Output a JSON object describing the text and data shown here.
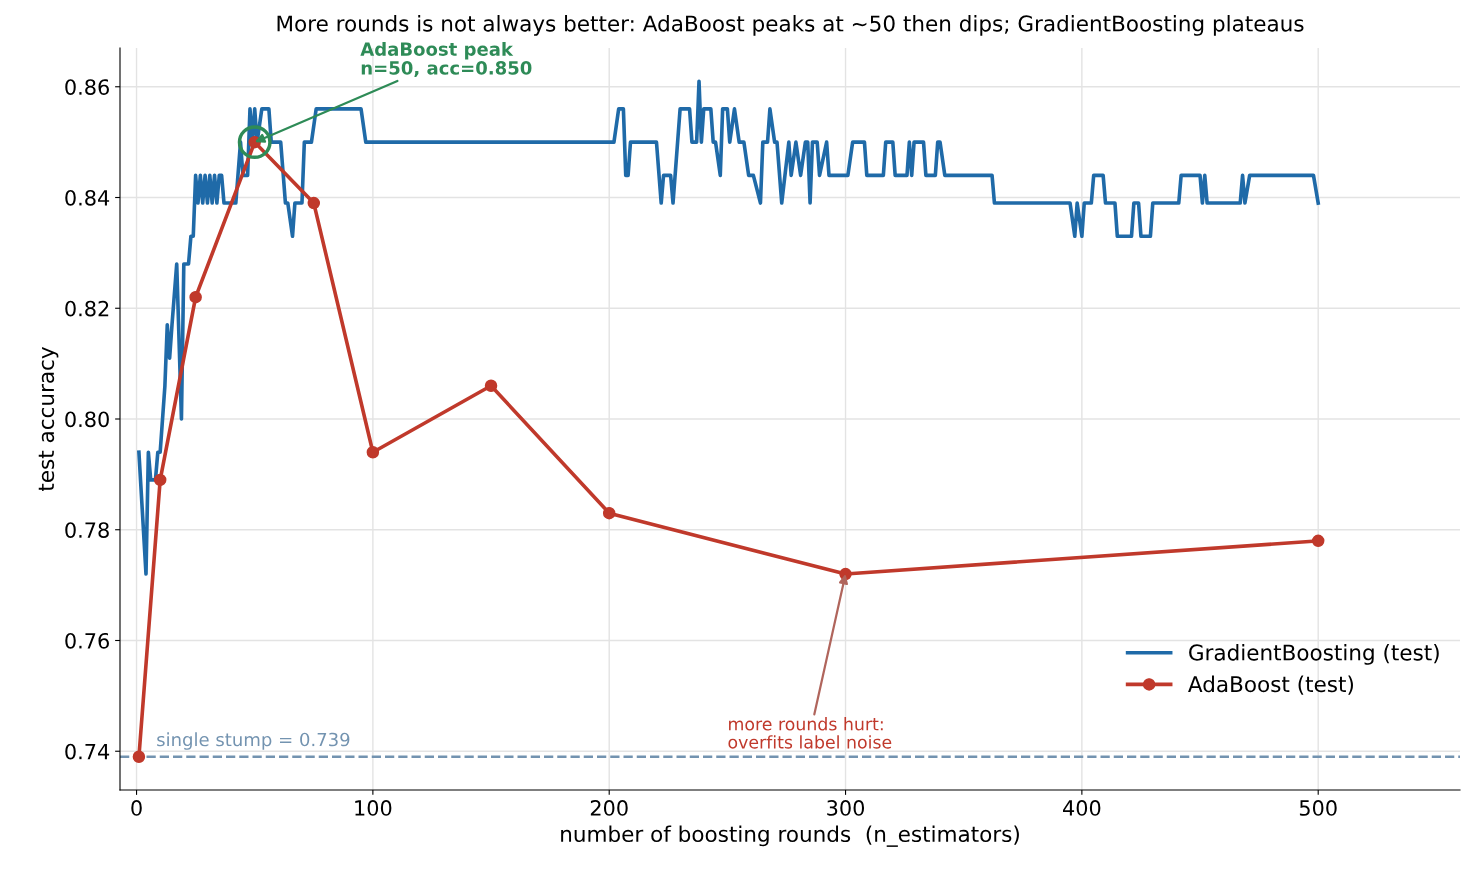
{
  "chart_data": {
    "type": "line",
    "title": "More rounds is not always better: AdaBoost peaks at ~50 then dips; GradientBoosting plateaus",
    "xlabel": "number of boosting rounds  (n_estimators)",
    "ylabel": "test accuracy",
    "xlim": [
      -7,
      560
    ],
    "ylim": [
      0.733,
      0.867
    ],
    "xticks": [
      0,
      100,
      200,
      300,
      400,
      500
    ],
    "yticks": [
      {
        "value": 0.74,
        "label": "0.74"
      },
      {
        "value": 0.76,
        "label": "0.76"
      },
      {
        "value": 0.78,
        "label": "0.78"
      },
      {
        "value": 0.8,
        "label": "0.80"
      },
      {
        "value": 0.82,
        "label": "0.82"
      },
      {
        "value": 0.84,
        "label": "0.84"
      },
      {
        "value": 0.86,
        "label": "0.86"
      }
    ],
    "grid": true,
    "legend": "bottom right",
    "series": [
      {
        "name": "GradientBoosting (test)",
        "color": "#1f6aa8",
        "marker": "none",
        "x": [
          1,
          4,
          5,
          6,
          8,
          9,
          10,
          12,
          13,
          14,
          15,
          17,
          19,
          20,
          22,
          23,
          24,
          25,
          26,
          27,
          28,
          29,
          30,
          31,
          32,
          33,
          34,
          35,
          36,
          37,
          42,
          44,
          45,
          47,
          48,
          49,
          50,
          51,
          53,
          56,
          57,
          61,
          63,
          64,
          66,
          67,
          70,
          71,
          74,
          76,
          95,
          97,
          202,
          204,
          206,
          207,
          208,
          209,
          220,
          222,
          223,
          226,
          227,
          230,
          234,
          235,
          237,
          238,
          239,
          240,
          243,
          244,
          245,
          247,
          248,
          250,
          251,
          253,
          255,
          257,
          259,
          261,
          264,
          265,
          267,
          268,
          270,
          271,
          273,
          276,
          277,
          279,
          281,
          283,
          284,
          285,
          286,
          288,
          289,
          292,
          293,
          301,
          303,
          308,
          309,
          316,
          317,
          320,
          321,
          326,
          327,
          328,
          329,
          333,
          334,
          338,
          339,
          340,
          342,
          362,
          363,
          395,
          397,
          398,
          400,
          401,
          404,
          405,
          409,
          410,
          414,
          415,
          421,
          422,
          424,
          425,
          429,
          430,
          441,
          442,
          450,
          451,
          452,
          453,
          467,
          468,
          469,
          471,
          498,
          500
        ],
        "values": [
          0.794,
          0.772,
          0.794,
          0.789,
          0.789,
          0.794,
          0.794,
          0.806,
          0.817,
          0.811,
          0.817,
          0.828,
          0.8,
          0.828,
          0.828,
          0.833,
          0.833,
          0.844,
          0.839,
          0.844,
          0.839,
          0.844,
          0.839,
          0.844,
          0.839,
          0.844,
          0.839,
          0.844,
          0.844,
          0.839,
          0.839,
          0.85,
          0.844,
          0.844,
          0.856,
          0.85,
          0.856,
          0.85,
          0.856,
          0.856,
          0.85,
          0.85,
          0.839,
          0.839,
          0.833,
          0.839,
          0.839,
          0.85,
          0.85,
          0.856,
          0.856,
          0.85,
          0.85,
          0.856,
          0.856,
          0.844,
          0.844,
          0.85,
          0.85,
          0.839,
          0.844,
          0.844,
          0.839,
          0.856,
          0.856,
          0.85,
          0.85,
          0.861,
          0.85,
          0.856,
          0.856,
          0.85,
          0.85,
          0.844,
          0.856,
          0.856,
          0.85,
          0.856,
          0.85,
          0.85,
          0.844,
          0.844,
          0.839,
          0.85,
          0.85,
          0.856,
          0.85,
          0.85,
          0.839,
          0.85,
          0.844,
          0.85,
          0.844,
          0.85,
          0.85,
          0.839,
          0.85,
          0.85,
          0.844,
          0.85,
          0.844,
          0.844,
          0.85,
          0.85,
          0.844,
          0.844,
          0.85,
          0.85,
          0.844,
          0.844,
          0.85,
          0.844,
          0.85,
          0.85,
          0.844,
          0.844,
          0.85,
          0.85,
          0.844,
          0.844,
          0.839,
          0.839,
          0.833,
          0.839,
          0.833,
          0.839,
          0.839,
          0.844,
          0.844,
          0.839,
          0.839,
          0.833,
          0.833,
          0.839,
          0.839,
          0.833,
          0.833,
          0.839,
          0.839,
          0.844,
          0.844,
          0.839,
          0.844,
          0.839,
          0.839,
          0.844,
          0.839,
          0.844,
          0.844,
          0.839
        ]
      },
      {
        "name": "AdaBoost (test)",
        "color": "#c0392b",
        "marker": "circle",
        "x": [
          1,
          10,
          25,
          50,
          75,
          100,
          150,
          200,
          300,
          500
        ],
        "values": [
          0.739,
          0.789,
          0.822,
          0.85,
          0.839,
          0.794,
          0.806,
          0.783,
          0.772,
          0.778
        ]
      }
    ],
    "ref_lines": [
      {
        "axis": "y",
        "value": 0.739,
        "label": "single stump = 0.739",
        "color": "#7393b0",
        "line_style": "dashed"
      }
    ],
    "annotations": [
      {
        "text": "AdaBoost peak\nn=50, acc=0.850",
        "x": 50,
        "y": 0.85
      },
      {
        "text": "more rounds hurt:\noverfits label noise",
        "x": 300,
        "y": 0.772
      }
    ]
  }
}
